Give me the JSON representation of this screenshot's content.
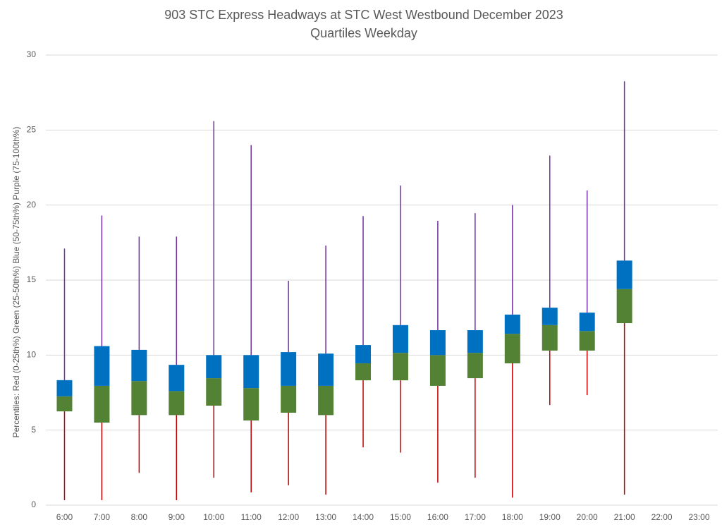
{
  "chart_data": {
    "type": "box",
    "title": "903 STC Express Headways at STC West Westbound December 2023",
    "subtitle": "Quartiles Weekday",
    "y_label": "Percentiles:  Red (0-25th%)  Green (25-50th%)  Blue (50-75th%)  Purple (75-100th%)",
    "categories": [
      "6:00",
      "7:00",
      "8:00",
      "9:00",
      "10:00",
      "11:00",
      "12:00",
      "13:00",
      "14:00",
      "15:00",
      "16:00",
      "17:00",
      "18:00",
      "19:00",
      "20:00",
      "21:00",
      "22:00",
      "23:00"
    ],
    "min": [
      0.33,
      0.33,
      2.15,
      0.33,
      1.83,
      0.85,
      1.32,
      0.7,
      3.85,
      3.5,
      1.5,
      1.83,
      0.5,
      6.67,
      7.33,
      0.7,
      null,
      null
    ],
    "q1": [
      6.25,
      5.5,
      6.0,
      6.0,
      6.63,
      5.64,
      6.16,
      6.0,
      8.32,
      8.32,
      7.95,
      8.46,
      9.45,
      10.3,
      10.3,
      12.13,
      null,
      null
    ],
    "median": [
      7.25,
      7.95,
      8.27,
      7.6,
      8.46,
      7.8,
      7.95,
      7.95,
      9.45,
      10.15,
      10.0,
      10.15,
      11.42,
      12.0,
      11.6,
      14.4,
      null,
      null
    ],
    "q3": [
      8.33,
      10.6,
      10.35,
      9.35,
      10.0,
      10.0,
      10.2,
      10.1,
      10.67,
      12.0,
      11.66,
      11.66,
      12.7,
      13.16,
      12.83,
      16.3,
      null,
      null
    ],
    "max": [
      17.1,
      19.3,
      17.9,
      17.9,
      25.6,
      24.0,
      14.95,
      17.3,
      19.27,
      21.3,
      18.95,
      19.46,
      20.0,
      23.3,
      20.97,
      28.25,
      null,
      null
    ],
    "colors": {
      "lower_whisker": "#c00000",
      "lower_box": "#548235",
      "upper_box": "#0070c0",
      "upper_whisker": "#7030a0"
    },
    "ylim": [
      0,
      30
    ],
    "yticks": [
      0,
      5,
      10,
      15,
      20,
      25,
      30
    ],
    "grid": true
  }
}
